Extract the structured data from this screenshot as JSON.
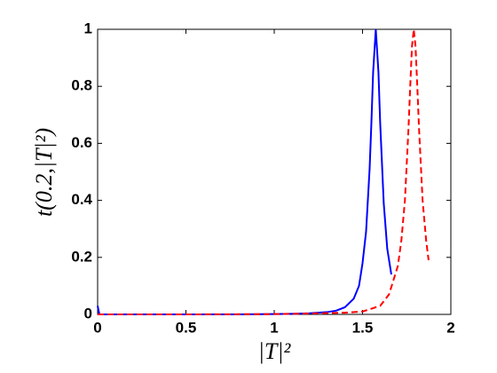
{
  "chart_data": {
    "type": "line",
    "xlabel": "|T|²",
    "ylabel": "t(0.2,|T|²)",
    "xlim": [
      0,
      2
    ],
    "ylim": [
      0,
      1
    ],
    "xticks": [
      0,
      0.5,
      1,
      1.5,
      2
    ],
    "yticks": [
      0,
      0.2,
      0.4,
      0.6,
      0.8,
      1
    ],
    "series": [
      {
        "color": "#0000ff",
        "dash": "solid",
        "x": [
          0,
          0.01,
          0.2,
          0.4,
          0.6,
          0.8,
          1.0,
          1.1,
          1.2,
          1.3,
          1.35,
          1.4,
          1.45,
          1.48,
          1.5,
          1.52,
          1.54,
          1.55,
          1.56,
          1.575,
          1.59,
          1.6,
          1.62,
          1.64,
          1.663
        ],
        "values": [
          0.03,
          0,
          0,
          0,
          0,
          0,
          0.001,
          0.002,
          0.004,
          0.008,
          0.013,
          0.025,
          0.055,
          0.1,
          0.18,
          0.29,
          0.51,
          0.67,
          0.85,
          1,
          0.85,
          0.67,
          0.39,
          0.23,
          0.14
        ]
      },
      {
        "color": "#ff0000",
        "dash": "dashed",
        "x": [
          0,
          0.5,
          1.0,
          1.2,
          1.4,
          1.5,
          1.6,
          1.65,
          1.7,
          1.72,
          1.74,
          1.76,
          1.77,
          1.78,
          1.79,
          1.8,
          1.81,
          1.82,
          1.84,
          1.86,
          1.874
        ],
        "values": [
          0,
          0,
          0.001,
          0.003,
          0.006,
          0.01,
          0.03,
          0.07,
          0.17,
          0.26,
          0.4,
          0.65,
          0.8,
          0.94,
          1,
          0.94,
          0.8,
          0.65,
          0.4,
          0.26,
          0.19
        ]
      }
    ]
  }
}
